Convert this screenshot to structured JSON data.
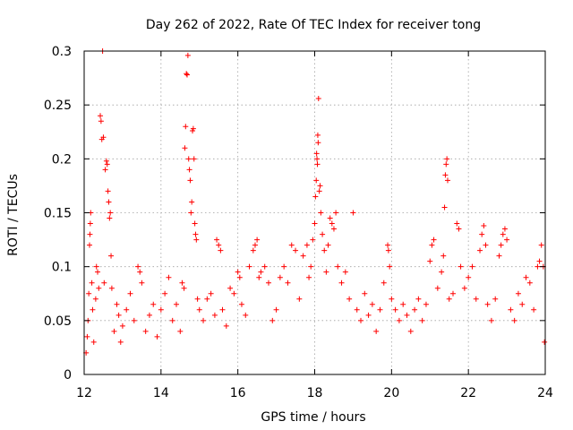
{
  "chart_data": {
    "type": "scatter",
    "title": "Day 262 of 2022, Rate Of TEC Index for receiver tong",
    "xlabel": "GPS time / hours",
    "ylabel": "ROTI / TECUs",
    "xlim": [
      12,
      24
    ],
    "ylim": [
      0,
      0.3
    ],
    "xticks": [
      12,
      14,
      16,
      18,
      20,
      22,
      24
    ],
    "xtick_labels": [
      "12",
      "14",
      "16",
      "18",
      "20",
      "22",
      "24"
    ],
    "yticks": [
      0,
      0.05,
      0.1,
      0.15,
      0.2,
      0.25,
      0.3
    ],
    "ytick_labels": [
      "0",
      "0.05",
      "0.1",
      "0.15",
      "0.2",
      "0.25",
      "0.3"
    ],
    "grid": true,
    "marker": "plus",
    "color": "#ff0000",
    "series": [
      {
        "points": [
          [
            12.05,
            0.02
          ],
          [
            12.08,
            0.035
          ],
          [
            12.1,
            0.05
          ],
          [
            12.12,
            0.075
          ],
          [
            12.14,
            0.12
          ],
          [
            12.15,
            0.13
          ],
          [
            12.16,
            0.14
          ],
          [
            12.17,
            0.15
          ],
          [
            12.2,
            0.085
          ],
          [
            12.22,
            0.06
          ],
          [
            12.25,
            0.03
          ],
          [
            12.3,
            0.07
          ],
          [
            12.32,
            0.1
          ],
          [
            12.35,
            0.095
          ],
          [
            12.38,
            0.08
          ],
          [
            12.42,
            0.24
          ],
          [
            12.44,
            0.235
          ],
          [
            12.46,
            0.218
          ],
          [
            12.48,
            0.3
          ],
          [
            12.5,
            0.22
          ],
          [
            12.52,
            0.085
          ],
          [
            12.55,
            0.19
          ],
          [
            12.58,
            0.198
          ],
          [
            12.6,
            0.195
          ],
          [
            12.62,
            0.17
          ],
          [
            12.64,
            0.16
          ],
          [
            12.66,
            0.145
          ],
          [
            12.68,
            0.15
          ],
          [
            12.7,
            0.11
          ],
          [
            12.72,
            0.08
          ],
          [
            12.78,
            0.04
          ],
          [
            12.85,
            0.065
          ],
          [
            12.9,
            0.055
          ],
          [
            12.95,
            0.03
          ],
          [
            13.0,
            0.045
          ],
          [
            13.1,
            0.06
          ],
          [
            13.2,
            0.075
          ],
          [
            13.3,
            0.05
          ],
          [
            13.4,
            0.1
          ],
          [
            13.45,
            0.095
          ],
          [
            13.5,
            0.085
          ],
          [
            13.6,
            0.04
          ],
          [
            13.7,
            0.055
          ],
          [
            13.8,
            0.065
          ],
          [
            13.9,
            0.035
          ],
          [
            14.0,
            0.06
          ],
          [
            14.1,
            0.075
          ],
          [
            14.2,
            0.09
          ],
          [
            14.3,
            0.05
          ],
          [
            14.4,
            0.065
          ],
          [
            14.5,
            0.04
          ],
          [
            14.55,
            0.085
          ],
          [
            14.6,
            0.08
          ],
          [
            14.62,
            0.21
          ],
          [
            14.64,
            0.23
          ],
          [
            14.66,
            0.279
          ],
          [
            14.68,
            0.278
          ],
          [
            14.7,
            0.296
          ],
          [
            14.72,
            0.2
          ],
          [
            14.74,
            0.19
          ],
          [
            14.76,
            0.18
          ],
          [
            14.78,
            0.15
          ],
          [
            14.8,
            0.16
          ],
          [
            14.82,
            0.226
          ],
          [
            14.84,
            0.228
          ],
          [
            14.86,
            0.2
          ],
          [
            14.88,
            0.14
          ],
          [
            14.9,
            0.13
          ],
          [
            14.92,
            0.125
          ],
          [
            14.95,
            0.07
          ],
          [
            15.0,
            0.06
          ],
          [
            15.1,
            0.05
          ],
          [
            15.2,
            0.07
          ],
          [
            15.3,
            0.075
          ],
          [
            15.4,
            0.055
          ],
          [
            15.45,
            0.125
          ],
          [
            15.5,
            0.12
          ],
          [
            15.55,
            0.115
          ],
          [
            15.6,
            0.06
          ],
          [
            15.7,
            0.045
          ],
          [
            15.8,
            0.08
          ],
          [
            15.9,
            0.075
          ],
          [
            16.0,
            0.095
          ],
          [
            16.05,
            0.09
          ],
          [
            16.1,
            0.065
          ],
          [
            16.2,
            0.055
          ],
          [
            16.3,
            0.1
          ],
          [
            16.4,
            0.115
          ],
          [
            16.45,
            0.12
          ],
          [
            16.5,
            0.125
          ],
          [
            16.55,
            0.09
          ],
          [
            16.6,
            0.095
          ],
          [
            16.7,
            0.1
          ],
          [
            16.8,
            0.085
          ],
          [
            16.9,
            0.05
          ],
          [
            17.0,
            0.06
          ],
          [
            17.1,
            0.09
          ],
          [
            17.2,
            0.1
          ],
          [
            17.3,
            0.085
          ],
          [
            17.4,
            0.12
          ],
          [
            17.5,
            0.115
          ],
          [
            17.6,
            0.07
          ],
          [
            17.7,
            0.11
          ],
          [
            17.8,
            0.12
          ],
          [
            17.85,
            0.09
          ],
          [
            17.9,
            0.1
          ],
          [
            17.95,
            0.125
          ],
          [
            18.0,
            0.14
          ],
          [
            18.02,
            0.165
          ],
          [
            18.04,
            0.18
          ],
          [
            18.05,
            0.205
          ],
          [
            18.06,
            0.2
          ],
          [
            18.07,
            0.195
          ],
          [
            18.08,
            0.222
          ],
          [
            18.09,
            0.215
          ],
          [
            18.1,
            0.256
          ],
          [
            18.12,
            0.17
          ],
          [
            18.14,
            0.175
          ],
          [
            18.16,
            0.15
          ],
          [
            18.2,
            0.13
          ],
          [
            18.25,
            0.115
          ],
          [
            18.3,
            0.095
          ],
          [
            18.35,
            0.12
          ],
          [
            18.4,
            0.145
          ],
          [
            18.45,
            0.14
          ],
          [
            18.5,
            0.135
          ],
          [
            18.55,
            0.15
          ],
          [
            18.6,
            0.1
          ],
          [
            18.7,
            0.085
          ],
          [
            18.8,
            0.095
          ],
          [
            18.9,
            0.07
          ],
          [
            19.0,
            0.15
          ],
          [
            19.1,
            0.06
          ],
          [
            19.2,
            0.05
          ],
          [
            19.3,
            0.075
          ],
          [
            19.4,
            0.055
          ],
          [
            19.5,
            0.065
          ],
          [
            19.6,
            0.04
          ],
          [
            19.7,
            0.06
          ],
          [
            19.8,
            0.085
          ],
          [
            19.9,
            0.12
          ],
          [
            19.92,
            0.115
          ],
          [
            19.95,
            0.1
          ],
          [
            20.0,
            0.07
          ],
          [
            20.1,
            0.06
          ],
          [
            20.2,
            0.05
          ],
          [
            20.3,
            0.065
          ],
          [
            20.4,
            0.055
          ],
          [
            20.5,
            0.04
          ],
          [
            20.6,
            0.06
          ],
          [
            20.7,
            0.07
          ],
          [
            20.8,
            0.05
          ],
          [
            20.9,
            0.065
          ],
          [
            21.0,
            0.105
          ],
          [
            21.05,
            0.12
          ],
          [
            21.1,
            0.125
          ],
          [
            21.2,
            0.08
          ],
          [
            21.3,
            0.095
          ],
          [
            21.35,
            0.11
          ],
          [
            21.38,
            0.155
          ],
          [
            21.4,
            0.185
          ],
          [
            21.42,
            0.195
          ],
          [
            21.44,
            0.2
          ],
          [
            21.46,
            0.18
          ],
          [
            21.5,
            0.07
          ],
          [
            21.6,
            0.075
          ],
          [
            21.7,
            0.14
          ],
          [
            21.75,
            0.135
          ],
          [
            21.8,
            0.1
          ],
          [
            21.9,
            0.08
          ],
          [
            22.0,
            0.09
          ],
          [
            22.1,
            0.1
          ],
          [
            22.2,
            0.07
          ],
          [
            22.3,
            0.115
          ],
          [
            22.35,
            0.13
          ],
          [
            22.4,
            0.138
          ],
          [
            22.45,
            0.12
          ],
          [
            22.5,
            0.065
          ],
          [
            22.6,
            0.05
          ],
          [
            22.7,
            0.07
          ],
          [
            22.8,
            0.11
          ],
          [
            22.85,
            0.12
          ],
          [
            22.9,
            0.13
          ],
          [
            22.95,
            0.135
          ],
          [
            23.0,
            0.125
          ],
          [
            23.1,
            0.06
          ],
          [
            23.2,
            0.05
          ],
          [
            23.3,
            0.075
          ],
          [
            23.4,
            0.065
          ],
          [
            23.5,
            0.09
          ],
          [
            23.6,
            0.085
          ],
          [
            23.7,
            0.06
          ],
          [
            23.8,
            0.1
          ],
          [
            23.85,
            0.105
          ],
          [
            23.9,
            0.12
          ],
          [
            23.95,
            0.1
          ],
          [
            23.98,
            0.03
          ]
        ]
      }
    ]
  }
}
